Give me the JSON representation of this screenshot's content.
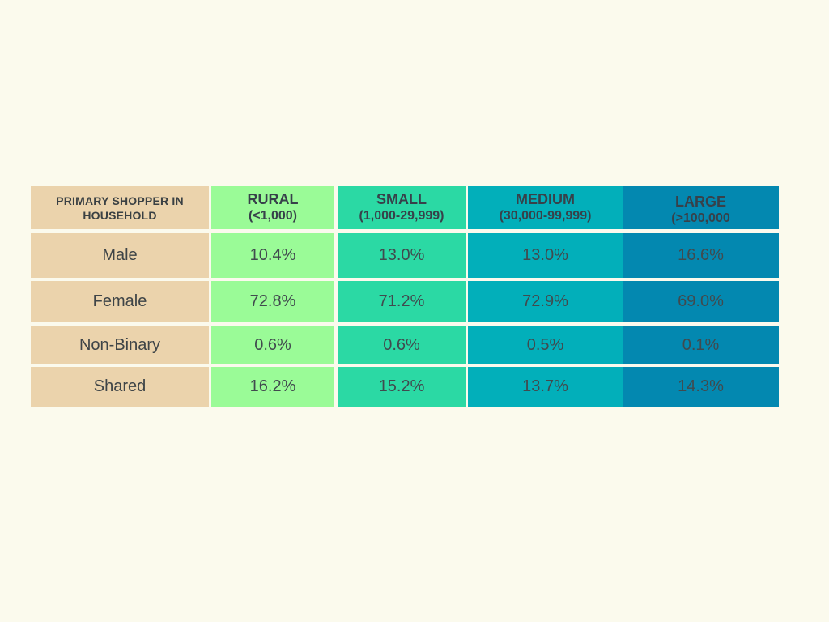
{
  "colors": {
    "background": "#FBFAED",
    "label-col": "#EBD3AC",
    "rural-col": "#9AFB97",
    "small-col": "#2BD9A4",
    "medium-col": "#02AFBA",
    "large-col": "#0388B0",
    "text": "#3F4548"
  },
  "table": {
    "corner_header": "PRIMARY SHOPPER IN HOUSEHOLD",
    "columns": [
      {
        "title": "RURAL",
        "subtitle": "(<1,000)"
      },
      {
        "title": "SMALL",
        "subtitle": "(1,000-29,999)"
      },
      {
        "title": "MEDIUM",
        "subtitle": "(30,000-99,999)"
      },
      {
        "title": "LARGE",
        "subtitle": "(>100,000"
      }
    ],
    "rows": [
      {
        "label": "Male",
        "values": [
          "10.4%",
          "13.0%",
          "13.0%",
          "16.6%"
        ]
      },
      {
        "label": "Female",
        "values": [
          "72.8%",
          "71.2%",
          "72.9%",
          "69.0%"
        ]
      },
      {
        "label": "Non-Binary",
        "values": [
          "0.6%",
          "0.6%",
          "0.5%",
          "0.1%"
        ]
      },
      {
        "label": "Shared",
        "values": [
          "16.2%",
          "15.2%",
          "13.7%",
          "14.3%"
        ]
      }
    ]
  },
  "chart_data": {
    "type": "table",
    "title": "",
    "row_header": "PRIMARY SHOPPER IN HOUSEHOLD",
    "columns": [
      "RURAL (<1,000)",
      "SMALL (1,000-29,999)",
      "MEDIUM (30,000-99,999)",
      "LARGE (>100,000"
    ],
    "rows": [
      "Male",
      "Female",
      "Non-Binary",
      "Shared"
    ],
    "values_percent": [
      [
        10.4,
        13.0,
        13.0,
        16.6
      ],
      [
        72.8,
        71.2,
        72.9,
        69.0
      ],
      [
        0.6,
        0.6,
        0.5,
        0.1
      ],
      [
        16.2,
        15.2,
        13.7,
        14.3
      ]
    ]
  }
}
